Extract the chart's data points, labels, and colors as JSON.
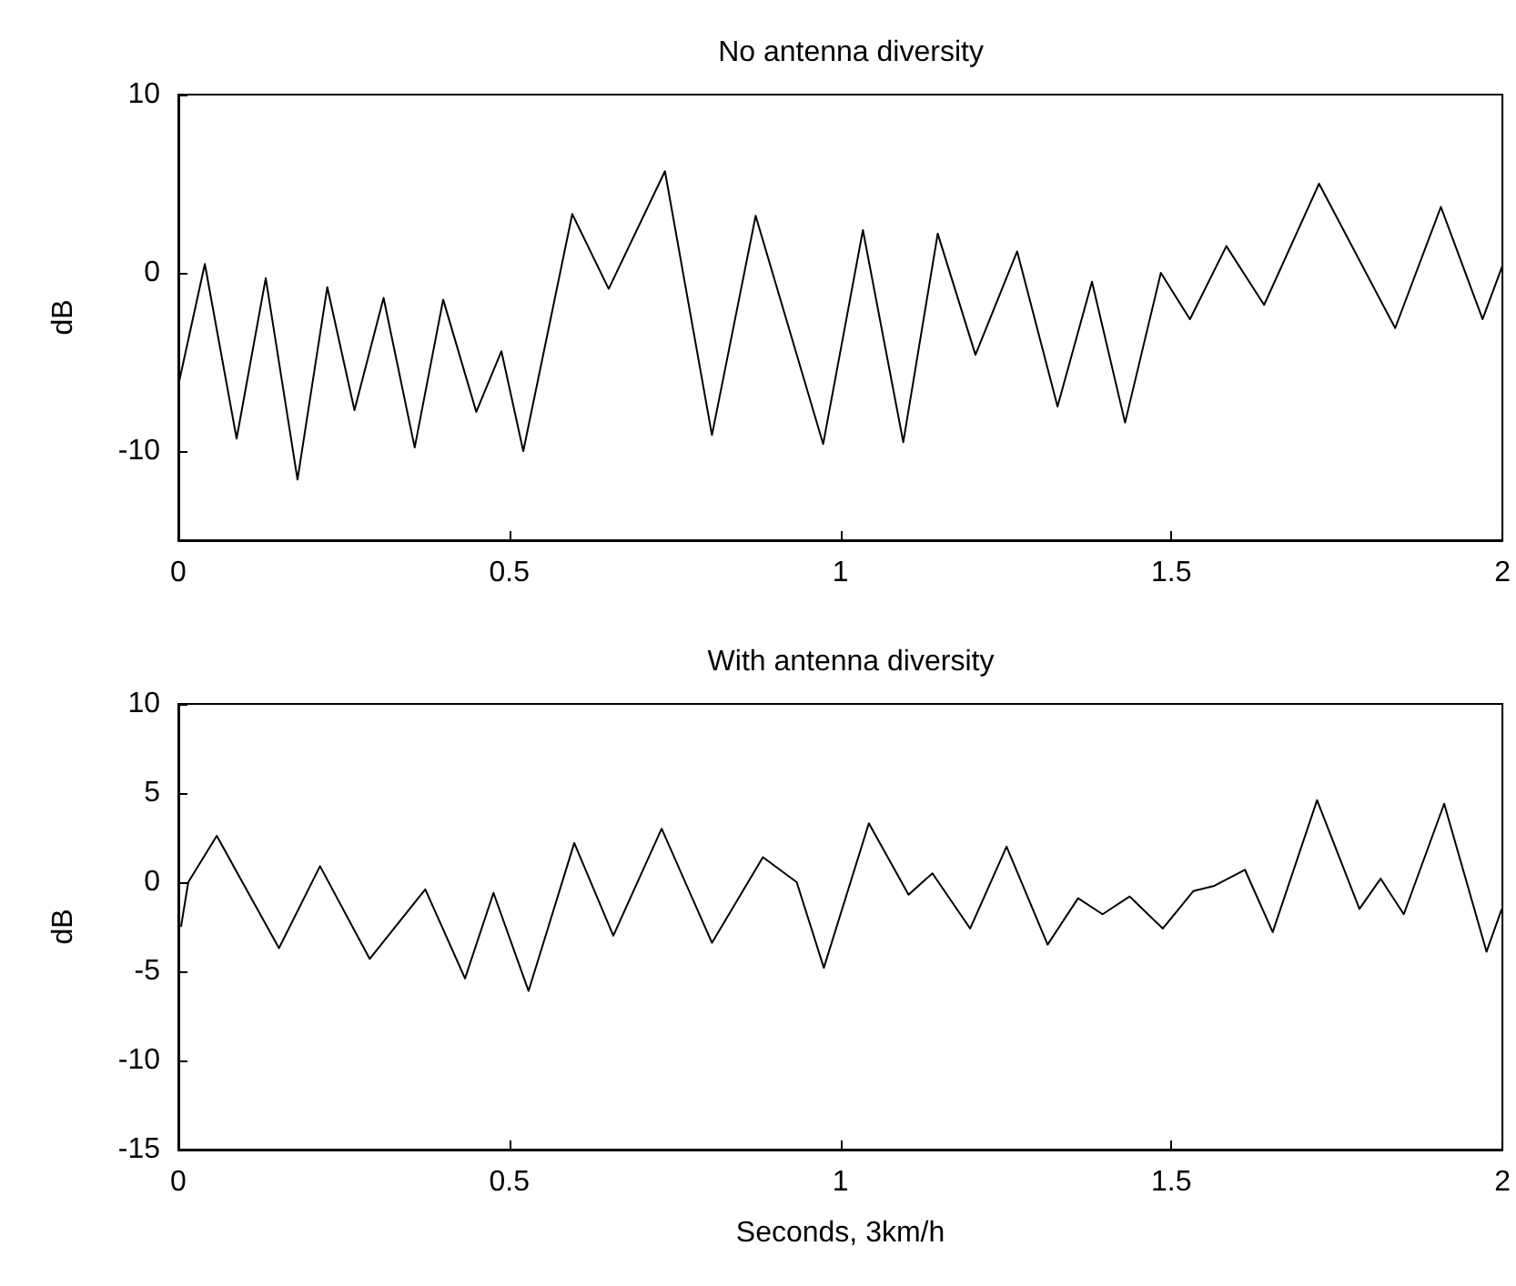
{
  "chart_data": [
    {
      "type": "line",
      "title": "No antenna diversity",
      "ylabel": "dB",
      "color": "#000000",
      "x": [
        0,
        0.04,
        0.088,
        0.132,
        0.18,
        0.225,
        0.266,
        0.31,
        0.357,
        0.4,
        0.45,
        0.488,
        0.521,
        0.595,
        0.65,
        0.735,
        0.806,
        0.872,
        0.974,
        1.034,
        1.095,
        1.147,
        1.204,
        1.267,
        1.328,
        1.38,
        1.43,
        1.484,
        1.528,
        1.583,
        1.64,
        1.723,
        1.838,
        1.907,
        1.97,
        2
      ],
      "values": [
        -6.3,
        0.5,
        -9.3,
        -0.3,
        -11.6,
        -0.8,
        -7.7,
        -1.4,
        -9.8,
        -1.5,
        -7.8,
        -4.4,
        -10,
        3.3,
        -0.9,
        5.7,
        -9.1,
        3.2,
        -9.6,
        2.4,
        -9.5,
        2.2,
        -4.6,
        1.2,
        -7.5,
        -0.5,
        -8.4,
        0,
        -2.6,
        1.5,
        -1.8,
        5,
        -3.1,
        3.7,
        -2.6,
        0.4
      ],
      "xlim": [
        0,
        2
      ],
      "xticks": [
        0,
        0.5,
        1,
        1.5,
        2
      ],
      "ylim": [
        -15,
        10
      ],
      "yticks": [
        -10,
        0,
        10
      ]
    },
    {
      "type": "line",
      "title": "With antenna diversity",
      "xlabel": "Seconds, 3km/h",
      "ylabel": "dB",
      "color": "#000000",
      "x": [
        0.004,
        0.015,
        0.058,
        0.152,
        0.214,
        0.289,
        0.373,
        0.433,
        0.476,
        0.529,
        0.598,
        0.657,
        0.73,
        0.806,
        0.883,
        0.934,
        0.975,
        1.043,
        1.103,
        1.139,
        1.196,
        1.251,
        1.313,
        1.359,
        1.396,
        1.437,
        1.487,
        1.533,
        1.565,
        1.611,
        1.653,
        1.72,
        1.784,
        1.816,
        1.851,
        1.912,
        1.976,
        1.999
      ],
      "values": [
        -2.5,
        0,
        2.6,
        -3.7,
        0.9,
        -4.3,
        -0.4,
        -5.4,
        -0.6,
        -6.1,
        2.2,
        -3,
        3,
        -3.4,
        1.4,
        0,
        -4.8,
        3.3,
        -0.7,
        0.5,
        -2.6,
        2,
        -3.5,
        -0.9,
        -1.8,
        -0.8,
        -2.6,
        -0.5,
        -0.2,
        0.7,
        -2.8,
        4.6,
        -1.5,
        0.2,
        -1.8,
        4.4,
        -3.9,
        -1.5
      ],
      "xlim": [
        0,
        2
      ],
      "xticks": [
        0,
        0.5,
        1,
        1.5,
        2
      ],
      "ylim": [
        -15,
        10
      ],
      "yticks": [
        -15,
        -10,
        -5,
        0,
        5,
        10
      ]
    }
  ]
}
